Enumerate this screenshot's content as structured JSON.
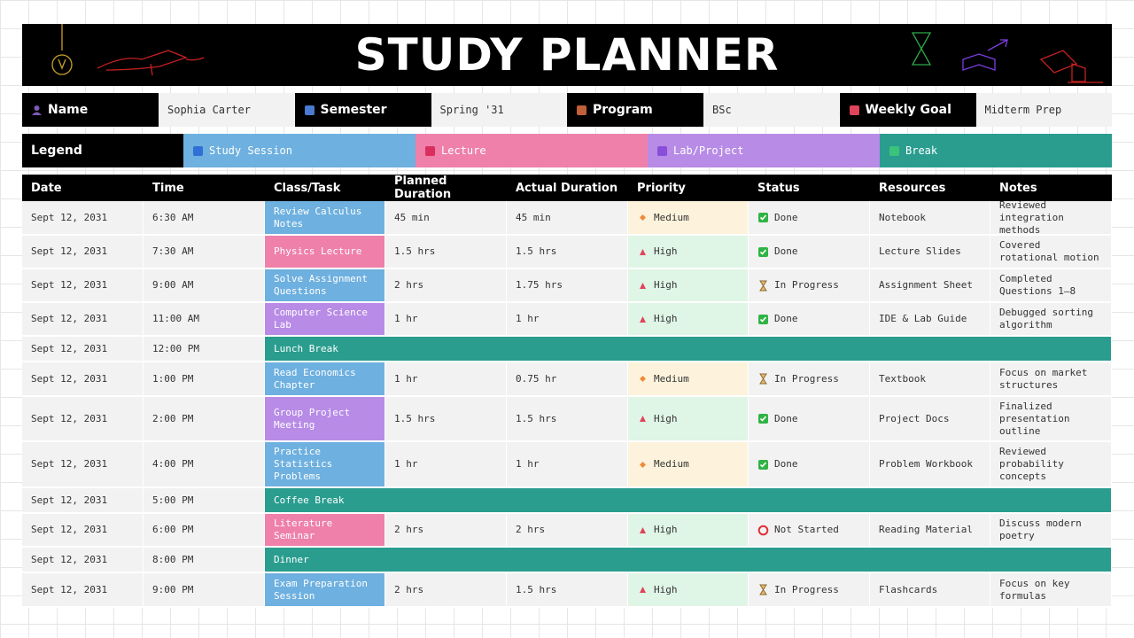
{
  "title": "STUDY PLANNER",
  "info": [
    {
      "label": "Name",
      "value": "Sophia Carter",
      "color": "#7b5bb5"
    },
    {
      "label": "Semester",
      "value": "Spring '31",
      "color": "#4a7bd0"
    },
    {
      "label": "Program",
      "value": "BSc",
      "color": "#c0603a"
    },
    {
      "label": "Weekly Goal",
      "value": "Midterm Prep",
      "color": "#e0445a"
    }
  ],
  "legend": {
    "label": "Legend",
    "items": [
      {
        "name": "Study Session",
        "color": "#6eb0df",
        "mark": "#2f6fd6"
      },
      {
        "name": "Lecture",
        "color": "#ee80a9",
        "mark": "#d92f5e"
      },
      {
        "name": "Lab/Project",
        "color": "#b78be6",
        "mark": "#8a4fd9"
      },
      {
        "name": "Break",
        "color": "#2a9d8f",
        "mark": "#3cc37a"
      }
    ]
  },
  "priorities": [
    {
      "label": "Medium",
      "color": "#f08a3c",
      "background": "#fdf3dc",
      "shape": "diamond"
    },
    {
      "label": "High",
      "color": "#e0445a",
      "background": "#dff5e6",
      "shape": "triangle"
    }
  ],
  "statuses": [
    {
      "label": "Done",
      "shape": "check"
    },
    {
      "label": "In Progress",
      "shape": "hourglass"
    },
    {
      "label": "Not Started",
      "shape": "ring"
    }
  ],
  "table": {
    "headers": [
      "Date",
      "Time",
      "Class/Task",
      "Planned Duration",
      "Actual Duration",
      "Priority",
      "Status",
      "Resources",
      "Notes"
    ],
    "rows": [
      {
        "date": "Sept 12, 2031",
        "time": "6:30 AM",
        "task": "Review Calculus Notes",
        "category": "Study Session",
        "planned": "45 min",
        "actual": "45 min",
        "priority": "Medium",
        "status": "Done",
        "resources": "Notebook",
        "notes": "Reviewed integration methods"
      },
      {
        "date": "Sept 12, 2031",
        "time": "7:30 AM",
        "task": "Physics Lecture",
        "category": "Lecture",
        "planned": "1.5 hrs",
        "actual": "1.5 hrs",
        "priority": "High",
        "status": "Done",
        "resources": "Lecture Slides",
        "notes": "Covered rotational motion"
      },
      {
        "date": "Sept 12, 2031",
        "time": "9:00 AM",
        "task": "Solve Assignment Questions",
        "category": "Study Session",
        "planned": "2 hrs",
        "actual": "1.75 hrs",
        "priority": "High",
        "status": "In Progress",
        "resources": "Assignment Sheet",
        "notes": "Completed Questions 1–8"
      },
      {
        "date": "Sept 12, 2031",
        "time": "11:00 AM",
        "task": "Computer Science Lab",
        "category": "Lab/Project",
        "planned": "1 hr",
        "actual": "1 hr",
        "priority": "High",
        "status": "Done",
        "resources": "IDE & Lab Guide",
        "notes": "Debugged sorting algorithm"
      },
      {
        "date": "Sept 12, 2031",
        "time": "12:00 PM",
        "task": "Lunch Break",
        "category": "Break"
      },
      {
        "date": "Sept 12, 2031",
        "time": "1:00 PM",
        "task": "Read Economics Chapter",
        "category": "Study Session",
        "planned": "1 hr",
        "actual": "0.75 hr",
        "priority": "Medium",
        "status": "In Progress",
        "resources": "Textbook",
        "notes": "Focus on market structures"
      },
      {
        "date": "Sept 12, 2031",
        "time": "2:00 PM",
        "task": "Group Project Meeting",
        "category": "Lab/Project",
        "planned": "1.5 hrs",
        "actual": "1.5 hrs",
        "priority": "High",
        "status": "Done",
        "resources": "Project Docs",
        "notes": "Finalized presentation outline"
      },
      {
        "date": "Sept 12, 2031",
        "time": "4:00 PM",
        "task": "Practice Statistics Problems",
        "category": "Study Session",
        "planned": "1 hr",
        "actual": "1 hr",
        "priority": "Medium",
        "status": "Done",
        "resources": "Problem Workbook",
        "notes": "Reviewed probability concepts"
      },
      {
        "date": "Sept 12, 2031",
        "time": "5:00 PM",
        "task": "Coffee Break",
        "category": "Break"
      },
      {
        "date": "Sept 12, 2031",
        "time": "6:00 PM",
        "task": "Literature Seminar",
        "category": "Lecture",
        "planned": "2 hrs",
        "actual": "2 hrs",
        "priority": "High",
        "status": "Not Started",
        "resources": "Reading Material",
        "notes": "Discuss modern poetry"
      },
      {
        "date": "Sept 12, 2031",
        "time": "8:00 PM",
        "task": "Dinner",
        "category": "Break"
      },
      {
        "date": "Sept 12, 2031",
        "time": "9:00 PM",
        "task": "Exam Preparation Session",
        "category": "Study Session",
        "planned": "2 hrs",
        "actual": "1.5 hrs",
        "priority": "High",
        "status": "In Progress",
        "resources": "Flashcards",
        "notes": "Focus on key formulas"
      }
    ]
  }
}
